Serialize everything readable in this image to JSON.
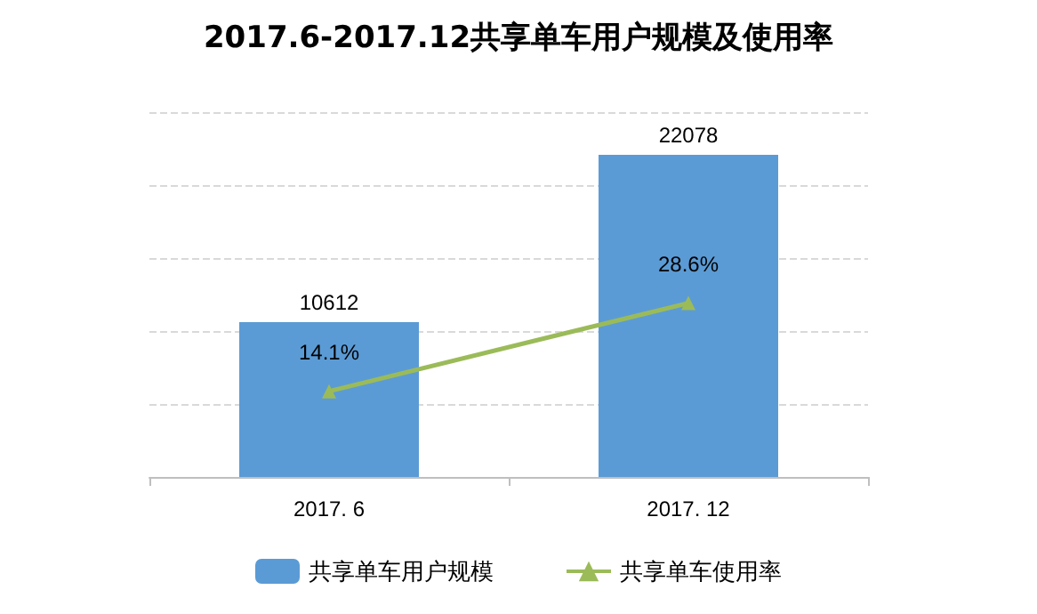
{
  "chart_data": {
    "type": "bar",
    "title": "2017.6-2017.12共享单车用户规模及使用率",
    "categories": [
      "2017. 6",
      "2017. 12"
    ],
    "series": [
      {
        "name": "共享单车用户规模",
        "color": "#5b9bd5",
        "values": [
          10612,
          22078
        ],
        "value_labels": [
          "10612",
          "22078"
        ]
      },
      {
        "name": "共享单车使用率",
        "type": "line",
        "axis": "y2",
        "color": "#9bbb59",
        "values": [
          14.1,
          28.6
        ],
        "value_labels": [
          "14.1%",
          "28.6%"
        ]
      }
    ],
    "ylim": [
      0,
      25000
    ],
    "yticks": [
      {
        "value": 0,
        "label": null
      },
      {
        "value": 5000,
        "label": null
      },
      {
        "value": 10000,
        "label": null
      },
      {
        "value": 15000,
        "label": null
      },
      {
        "value": 20000,
        "label": null
      },
      {
        "value": 25000,
        "label": null
      }
    ],
    "y2lim": [
      0,
      60
    ],
    "tick_labels": "x",
    "grid": "y",
    "legend": "bottom",
    "marker": "triangle",
    "line_style": "solid"
  }
}
